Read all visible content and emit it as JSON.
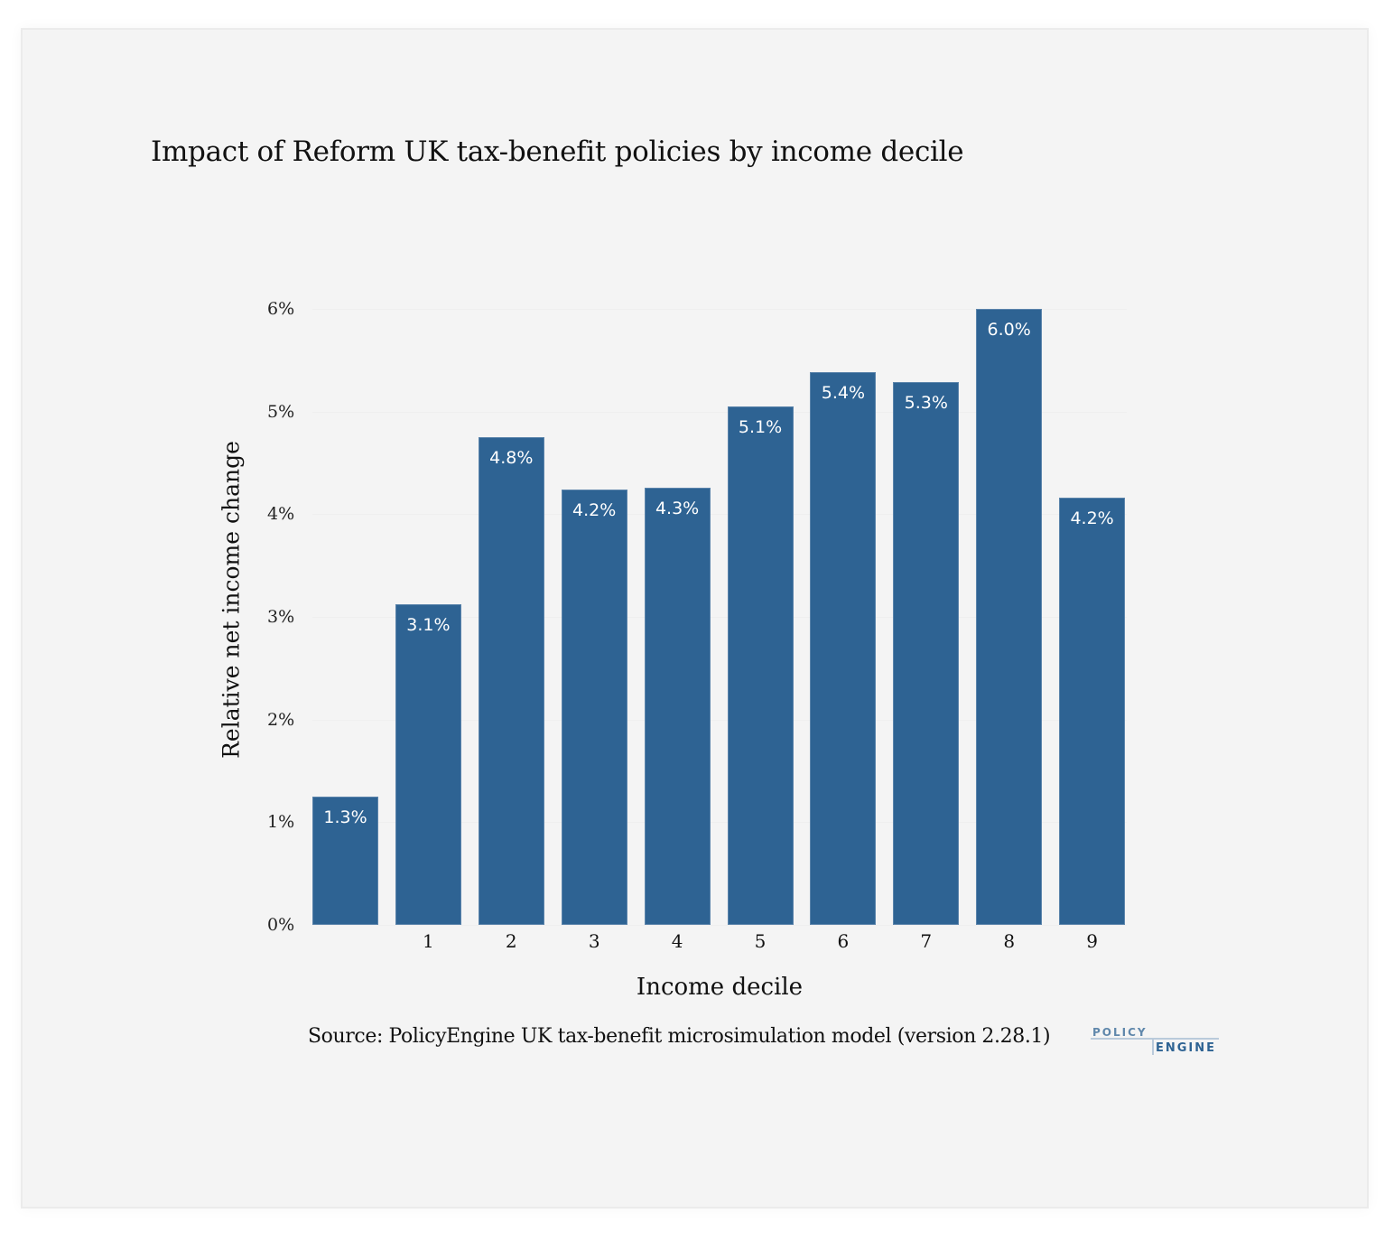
{
  "chart_data": {
    "type": "bar",
    "title": "Impact of Reform UK tax-benefit policies by income decile",
    "xlabel": "Income decile",
    "ylabel": "Relative net income change",
    "categories": [
      "",
      "1",
      "2",
      "3",
      "4",
      "5",
      "6",
      "7",
      "8",
      "9"
    ],
    "values": [
      1.25,
      3.12,
      4.75,
      4.24,
      4.26,
      5.05,
      5.38,
      5.29,
      6.0,
      4.16
    ],
    "data_labels": [
      "1.3%",
      "3.1%",
      "4.8%",
      "4.2%",
      "4.3%",
      "5.1%",
      "5.4%",
      "5.3%",
      "6.0%",
      "4.2%"
    ],
    "yticks": [
      "0%",
      "1%",
      "2%",
      "3%",
      "4%",
      "5%",
      "6%"
    ],
    "ylim": [
      0,
      6
    ],
    "grid": true,
    "legend": null,
    "bar_color": "#2e6393",
    "source": "Source: PolicyEngine UK tax-benefit microsimulation model (version 2.28.1)"
  },
  "logo": {
    "top": "POLICY",
    "bottom": "ENGINE"
  },
  "colors": {
    "background": "#f4f4f4",
    "bar": "#2e6393",
    "text": "#111111"
  }
}
